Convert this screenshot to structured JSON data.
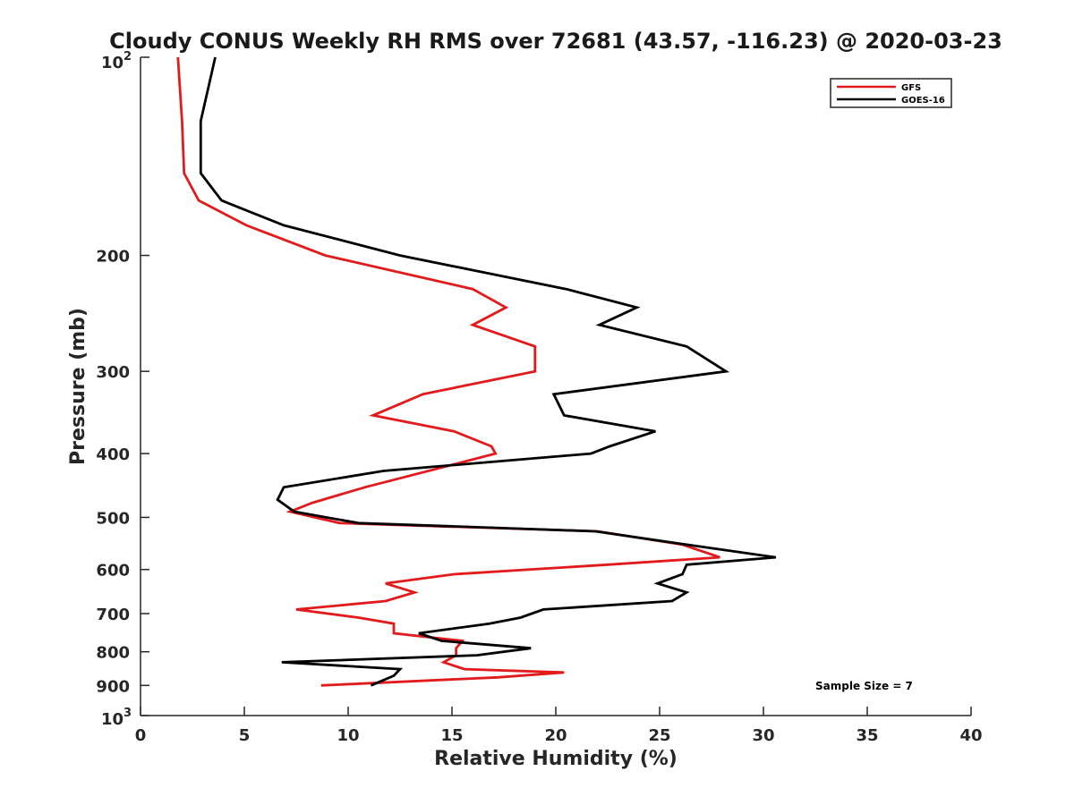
{
  "chart_data": {
    "type": "line",
    "title": "Cloudy CONUS Weekly RH RMS over 72681 (43.57, -116.23) @ 2020-03-23",
    "xlabel": "Relative Humidity (%)",
    "ylabel": "Pressure (mb)",
    "xlim": [
      0,
      40
    ],
    "ylim": [
      100,
      1000
    ],
    "y_scale": "log",
    "y_reversed": true,
    "x_ticks": [
      0,
      5,
      10,
      15,
      20,
      25,
      30,
      35,
      40
    ],
    "x_tick_labels": [
      "0",
      "5",
      "10",
      "15",
      "20",
      "25",
      "30",
      "35",
      "40"
    ],
    "y_ticks": [
      200,
      300,
      400,
      500,
      600,
      700,
      800,
      900
    ],
    "y_tick_labels": [
      "200",
      "300",
      "400",
      "500",
      "600",
      "700",
      "800",
      "900"
    ],
    "y_end_labels": {
      "top_base": "10",
      "top_exp": "2",
      "bottom_base": "10",
      "bottom_exp": "3"
    },
    "grid": false,
    "legend_position": "top-right",
    "annotation": "Sample Size = 7",
    "series": [
      {
        "name": "GFS",
        "color": "#e31a1c",
        "points": [
          [
            1.8,
            100
          ],
          [
            2.0,
            125
          ],
          [
            2.1,
            150
          ],
          [
            2.8,
            165
          ],
          [
            5.1,
            180
          ],
          [
            8.9,
            200
          ],
          [
            16.0,
            225
          ],
          [
            17.6,
            240
          ],
          [
            16.0,
            255
          ],
          [
            19.0,
            275
          ],
          [
            19.0,
            300
          ],
          [
            13.6,
            325
          ],
          [
            11.2,
            350
          ],
          [
            15.1,
            370
          ],
          [
            16.9,
            390
          ],
          [
            17.1,
            400
          ],
          [
            10.8,
            450
          ],
          [
            8.3,
            475
          ],
          [
            7.2,
            490
          ],
          [
            9.6,
            510
          ],
          [
            22.0,
            525
          ],
          [
            26.1,
            550
          ],
          [
            27.9,
            575
          ],
          [
            22.5,
            590
          ],
          [
            15.1,
            610
          ],
          [
            11.8,
            630
          ],
          [
            13.2,
            650
          ],
          [
            11.8,
            670
          ],
          [
            7.5,
            690
          ],
          [
            10.5,
            710
          ],
          [
            12.2,
            725
          ],
          [
            12.2,
            750
          ],
          [
            15.5,
            770
          ],
          [
            15.2,
            790
          ],
          [
            15.2,
            810
          ],
          [
            14.6,
            830
          ],
          [
            15.6,
            850
          ],
          [
            20.4,
            860
          ],
          [
            17.2,
            875
          ],
          [
            8.7,
            900
          ]
        ]
      },
      {
        "name": "GOES-16",
        "color": "#000000",
        "points": [
          [
            3.6,
            100
          ],
          [
            2.9,
            125
          ],
          [
            2.9,
            150
          ],
          [
            3.9,
            165
          ],
          [
            6.9,
            180
          ],
          [
            12.5,
            200
          ],
          [
            20.5,
            225
          ],
          [
            23.9,
            240
          ],
          [
            22.1,
            255
          ],
          [
            26.3,
            275
          ],
          [
            28.2,
            300
          ],
          [
            19.9,
            325
          ],
          [
            20.4,
            350
          ],
          [
            24.8,
            370
          ],
          [
            22.6,
            390
          ],
          [
            21.7,
            400
          ],
          [
            11.7,
            425
          ],
          [
            6.9,
            450
          ],
          [
            6.6,
            470
          ],
          [
            7.4,
            490
          ],
          [
            10.5,
            510
          ],
          [
            21.9,
            525
          ],
          [
            26.3,
            550
          ],
          [
            30.6,
            575
          ],
          [
            26.3,
            590
          ],
          [
            26.1,
            610
          ],
          [
            24.9,
            630
          ],
          [
            26.3,
            650
          ],
          [
            25.6,
            670
          ],
          [
            19.4,
            690
          ],
          [
            18.3,
            710
          ],
          [
            16.8,
            725
          ],
          [
            13.4,
            750
          ],
          [
            14.5,
            770
          ],
          [
            18.8,
            790
          ],
          [
            16.2,
            810
          ],
          [
            6.8,
            830
          ],
          [
            12.5,
            850
          ],
          [
            12.2,
            870
          ],
          [
            11.1,
            900
          ]
        ]
      }
    ]
  }
}
